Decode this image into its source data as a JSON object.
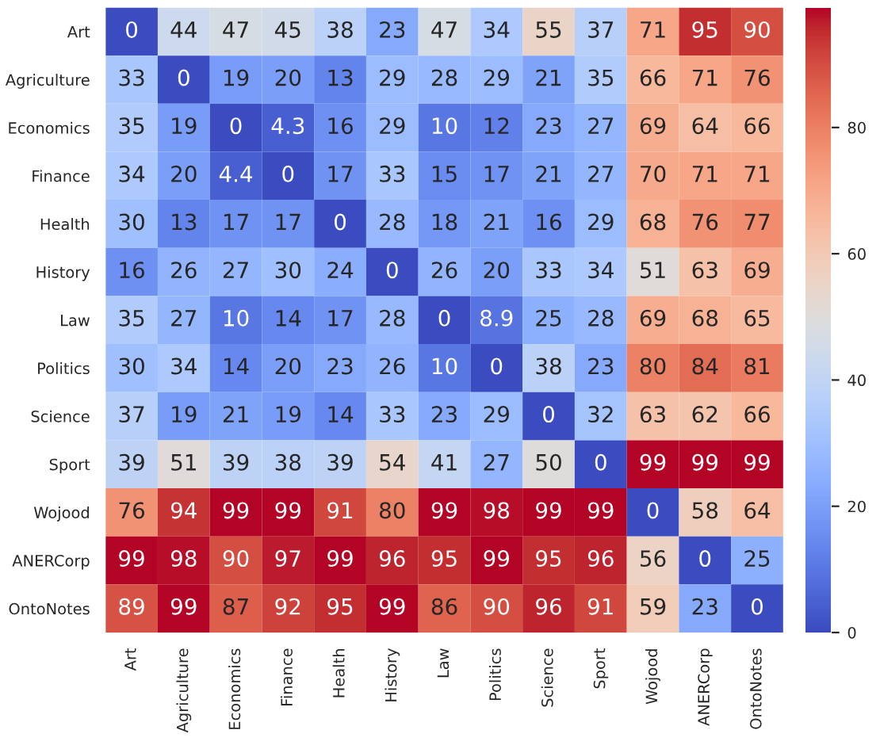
{
  "chart_data": {
    "type": "heatmap",
    "categories": [
      "Art",
      "Agriculture",
      "Economics",
      "Finance",
      "Health",
      "History",
      "Law",
      "Politics",
      "Science",
      "Sport",
      "Wojood",
      "ANERCorp",
      "OntoNotes"
    ],
    "y_categories": [
      "Art",
      "Agriculture",
      "Economics",
      "Finance",
      "Health",
      "History",
      "Law",
      "Politics",
      "Science",
      "Sport",
      "Wojood",
      "ANERCorp",
      "OntoNotes"
    ],
    "cells": [
      [
        0,
        44,
        47,
        45,
        38,
        23,
        47,
        34,
        55,
        37,
        71,
        95,
        90
      ],
      [
        33,
        0,
        19,
        20,
        13,
        29,
        28,
        29,
        21,
        35,
        66,
        71,
        76
      ],
      [
        35,
        19,
        0,
        4.3,
        16,
        29,
        10,
        12,
        23,
        27,
        69,
        64,
        66
      ],
      [
        34,
        20,
        4.4,
        0,
        17,
        33,
        15,
        17,
        21,
        27,
        70,
        71,
        71
      ],
      [
        30,
        13,
        17,
        17,
        0,
        28,
        18,
        21,
        16,
        29,
        68,
        76,
        77
      ],
      [
        16,
        26,
        27,
        30,
        24,
        0,
        26,
        20,
        33,
        34,
        51,
        63,
        69
      ],
      [
        35,
        27,
        10,
        14,
        17,
        28,
        0,
        8.9,
        25,
        28,
        69,
        68,
        65
      ],
      [
        30,
        34,
        14,
        20,
        23,
        26,
        10,
        0,
        38,
        23,
        80,
        84,
        81
      ],
      [
        37,
        19,
        21,
        19,
        14,
        33,
        23,
        29,
        0,
        32,
        63,
        62,
        66
      ],
      [
        39,
        51,
        39,
        38,
        39,
        54,
        41,
        27,
        50,
        0,
        99,
        99,
        99
      ],
      [
        76,
        94,
        99,
        99,
        91,
        80,
        99,
        98,
        99,
        99,
        0,
        58,
        64
      ],
      [
        99,
        98,
        90,
        97,
        99,
        96,
        95,
        99,
        95,
        96,
        56,
        0,
        25
      ],
      [
        89,
        99,
        87,
        92,
        95,
        99,
        86,
        90,
        96,
        91,
        59,
        23,
        0
      ]
    ],
    "clim": [
      0,
      99
    ],
    "cticks": [
      0,
      20,
      40,
      60,
      80
    ],
    "data_labels": true
  }
}
